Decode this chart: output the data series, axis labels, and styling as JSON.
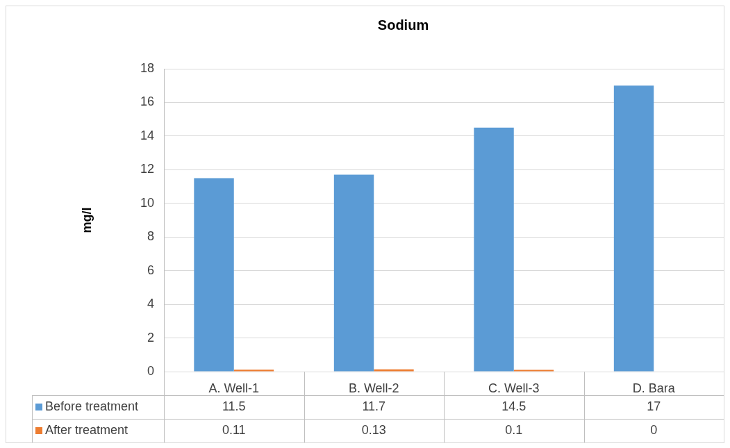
{
  "chart_data": {
    "type": "bar",
    "title": "Sodium",
    "ylabel": "mg/l",
    "categories": [
      "A. Well-1",
      "B. Well-2",
      "C. Well-3",
      "D. Bara"
    ],
    "series": [
      {
        "name": "Before treatment",
        "color": "#5b9bd5",
        "values": [
          11.5,
          11.7,
          14.5,
          17
        ]
      },
      {
        "name": "After treatment",
        "color": "#ed7d31",
        "values": [
          0.11,
          0.13,
          0.1,
          0
        ]
      }
    ],
    "ylim": [
      0,
      18
    ],
    "yticks": [
      0,
      2,
      4,
      6,
      8,
      10,
      12,
      14,
      16,
      18
    ],
    "grid": "y",
    "legend": "bottom",
    "data_labels": true
  }
}
